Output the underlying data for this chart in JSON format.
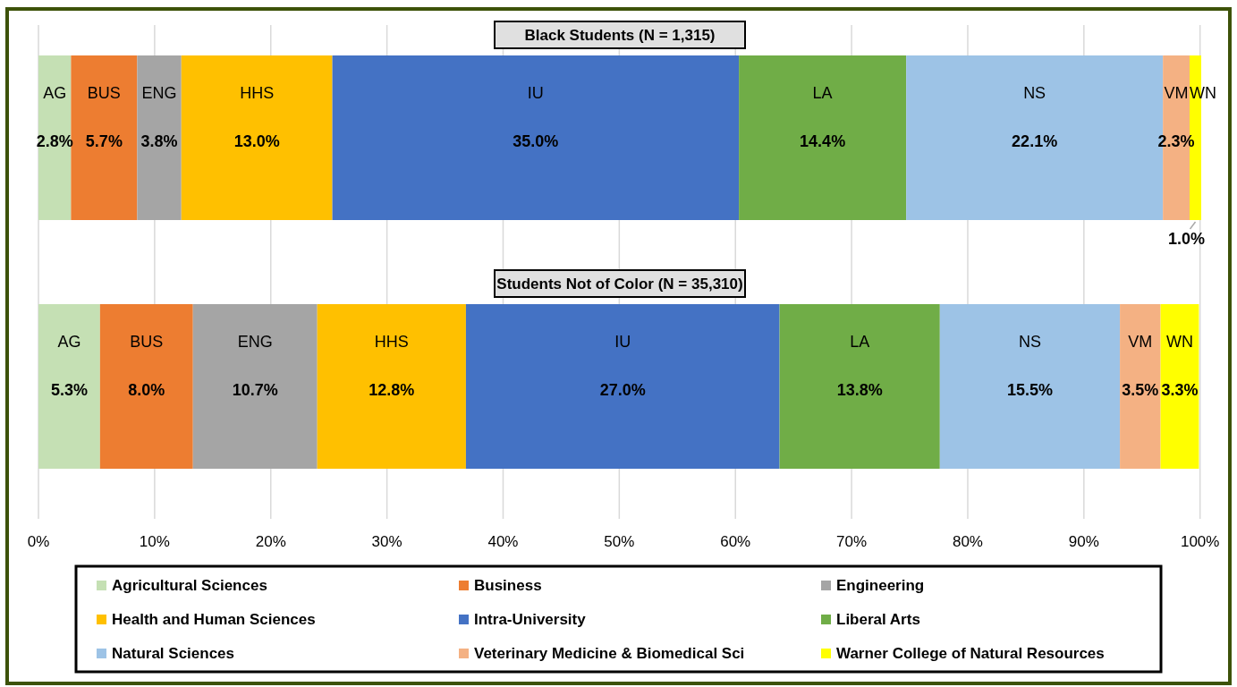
{
  "chart_data": {
    "type": "bar",
    "orientation": "horizontal",
    "stacked": true,
    "categories": [
      "Black Students (N = 1,315)",
      "Students Not of Color (N = 35,310)"
    ],
    "xlim": [
      0,
      100.1
    ],
    "xticks": [
      {
        "value": 0,
        "label": "0%"
      },
      {
        "value": 10,
        "label": "10%"
      },
      {
        "value": 20,
        "label": "20%"
      },
      {
        "value": 30,
        "label": "30%"
      },
      {
        "value": 40,
        "label": "40%"
      },
      {
        "value": 50,
        "label": "50%"
      },
      {
        "value": 60,
        "label": "60%"
      },
      {
        "value": 70,
        "label": "70%"
      },
      {
        "value": 80,
        "label": "80%"
      },
      {
        "value": 90,
        "label": "90%"
      },
      {
        "value": 100,
        "label": "100%"
      }
    ],
    "grid": "x",
    "legend": "bottom",
    "series": [
      {
        "name": "Agricultural Sciences",
        "color": "#c5e0b4",
        "values": [
          2.8,
          5.3
        ],
        "value_labels": [
          "2.8%",
          "5.3%"
        ]
      },
      {
        "name": "Business",
        "color": "#ed7d31",
        "values": [
          5.7,
          8.0
        ],
        "value_labels": [
          "5.7%",
          "8.0%"
        ]
      },
      {
        "name": "Engineering",
        "color": "#a5a5a5",
        "values": [
          3.8,
          10.7
        ],
        "value_labels": [
          "3.8%",
          "10.7%"
        ]
      },
      {
        "name": "Health and Human Sciences",
        "color": "#ffc000",
        "values": [
          13.0,
          12.8
        ],
        "value_labels": [
          "13.0%",
          "12.8%"
        ]
      },
      {
        "name": "Intra-University",
        "color": "#4472c4",
        "values": [
          35.0,
          27.0
        ],
        "value_labels": [
          "35.0%",
          "27.0%"
        ]
      },
      {
        "name": "Liberal Arts",
        "color": "#70ad47",
        "values": [
          14.4,
          13.8
        ],
        "value_labels": [
          "14.4%",
          "13.8%"
        ]
      },
      {
        "name": "Natural Sciences",
        "color": "#9dc3e6",
        "values": [
          22.1,
          15.5
        ],
        "value_labels": [
          "22.1%",
          "15.5%"
        ]
      },
      {
        "name": "Veterinary Medicine & Biomedical Sci",
        "color": "#f4b183",
        "values": [
          2.3,
          3.5
        ],
        "value_labels": [
          "2.3%",
          "3.5%"
        ]
      },
      {
        "name": "Warner College of Natural Resources",
        "color": "#ffff00",
        "values": [
          1.0,
          3.3
        ],
        "value_labels": [
          "1.0%",
          "3.3%"
        ]
      }
    ],
    "annotations": [
      "AG",
      "BUS",
      "ENG",
      "HHS",
      "IU",
      "LA",
      "NS",
      "VM",
      "WN",
      "AG",
      "BUS",
      "ENG",
      "HHS",
      "IU",
      "LA",
      "NS",
      "VM",
      "WN"
    ]
  }
}
